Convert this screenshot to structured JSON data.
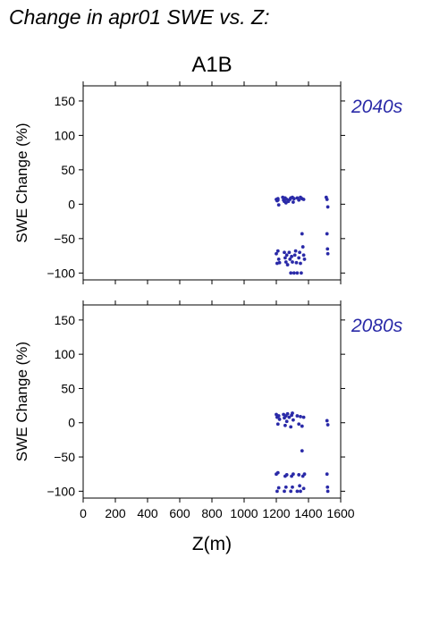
{
  "page": {
    "title": "Change in apr01 SWE vs. Z:"
  },
  "colors": {
    "points": "#2a2aa8",
    "era_label": "#2a2aa8",
    "axis": "#000000"
  },
  "chart_data": [
    {
      "type": "scatter",
      "title": "A1B",
      "annotation": "2040s",
      "xlabel": "",
      "ylabel": "SWE Change (%)",
      "xlim": [
        0,
        1600
      ],
      "ylim": [
        -110,
        172
      ],
      "xticks": [
        0,
        200,
        400,
        600,
        800,
        1000,
        1200,
        1400,
        1600
      ],
      "xtick_labels": [],
      "yticks": [
        -100,
        -50,
        0,
        50,
        100,
        150
      ],
      "ytick_labels": [
        "−100",
        "−50",
        "0",
        "50",
        "100",
        "150"
      ],
      "points": [
        [
          1200,
          7
        ],
        [
          1205,
          5
        ],
        [
          1210,
          8
        ],
        [
          1215,
          -1
        ],
        [
          1210,
          6
        ],
        [
          1240,
          10
        ],
        [
          1245,
          6
        ],
        [
          1250,
          4
        ],
        [
          1255,
          9
        ],
        [
          1260,
          2
        ],
        [
          1265,
          7
        ],
        [
          1275,
          4
        ],
        [
          1285,
          7
        ],
        [
          1290,
          9
        ],
        [
          1300,
          10
        ],
        [
          1305,
          3
        ],
        [
          1310,
          8
        ],
        [
          1330,
          9
        ],
        [
          1340,
          6
        ],
        [
          1350,
          10
        ],
        [
          1360,
          8
        ],
        [
          1370,
          7
        ],
        [
          1510,
          10
        ],
        [
          1515,
          7
        ],
        [
          1520,
          -4
        ],
        [
          1200,
          -72
        ],
        [
          1205,
          -86
        ],
        [
          1210,
          -68
        ],
        [
          1215,
          -80
        ],
        [
          1220,
          -85
        ],
        [
          1250,
          -70
        ],
        [
          1255,
          -78
        ],
        [
          1260,
          -84
        ],
        [
          1265,
          -74
        ],
        [
          1270,
          -88
        ],
        [
          1280,
          -70
        ],
        [
          1285,
          -80
        ],
        [
          1290,
          -100
        ],
        [
          1295,
          -76
        ],
        [
          1300,
          -84
        ],
        [
          1310,
          -100
        ],
        [
          1315,
          -74
        ],
        [
          1320,
          -68
        ],
        [
          1325,
          -85
        ],
        [
          1330,
          -100
        ],
        [
          1340,
          -78
        ],
        [
          1345,
          -70
        ],
        [
          1350,
          -86
        ],
        [
          1355,
          -100
        ],
        [
          1360,
          -43
        ],
        [
          1365,
          -62
        ],
        [
          1370,
          -74
        ],
        [
          1375,
          -80
        ],
        [
          1515,
          -43
        ],
        [
          1518,
          -65
        ],
        [
          1520,
          -72
        ]
      ]
    },
    {
      "type": "scatter",
      "title": "",
      "annotation": "2080s",
      "xlabel": "Z(m)",
      "ylabel": "SWE Change (%)",
      "xlim": [
        0,
        1600
      ],
      "ylim": [
        -110,
        172
      ],
      "xticks": [
        0,
        200,
        400,
        600,
        800,
        1000,
        1200,
        1400,
        1600
      ],
      "xtick_labels": [
        "0",
        "200",
        "400",
        "600",
        "800",
        "1000",
        "1200",
        "1400",
        "1600"
      ],
      "yticks": [
        -100,
        -50,
        0,
        50,
        100,
        150
      ],
      "ytick_labels": [
        "−100",
        "−50",
        "0",
        "50",
        "100",
        "150"
      ],
      "points": [
        [
          1200,
          12
        ],
        [
          1205,
          8
        ],
        [
          1210,
          -2
        ],
        [
          1215,
          10
        ],
        [
          1220,
          5
        ],
        [
          1245,
          12
        ],
        [
          1250,
          7
        ],
        [
          1255,
          -4
        ],
        [
          1260,
          10
        ],
        [
          1265,
          2
        ],
        [
          1270,
          13
        ],
        [
          1280,
          8
        ],
        [
          1290,
          -6
        ],
        [
          1295,
          11
        ],
        [
          1300,
          14
        ],
        [
          1305,
          4
        ],
        [
          1330,
          10
        ],
        [
          1340,
          -2
        ],
        [
          1350,
          9
        ],
        [
          1360,
          -5
        ],
        [
          1370,
          8
        ],
        [
          1515,
          3
        ],
        [
          1520,
          -3
        ],
        [
          1200,
          -75
        ],
        [
          1205,
          -100
        ],
        [
          1210,
          -73
        ],
        [
          1215,
          -95
        ],
        [
          1250,
          -100
        ],
        [
          1255,
          -78
        ],
        [
          1260,
          -94
        ],
        [
          1265,
          -76
        ],
        [
          1290,
          -100
        ],
        [
          1295,
          -78
        ],
        [
          1300,
          -94
        ],
        [
          1305,
          -75
        ],
        [
          1330,
          -100
        ],
        [
          1340,
          -76
        ],
        [
          1345,
          -92
        ],
        [
          1350,
          -100
        ],
        [
          1360,
          -41
        ],
        [
          1365,
          -78
        ],
        [
          1370,
          -96
        ],
        [
          1375,
          -75
        ],
        [
          1515,
          -75
        ],
        [
          1518,
          -94
        ],
        [
          1520,
          -100
        ]
      ]
    }
  ]
}
